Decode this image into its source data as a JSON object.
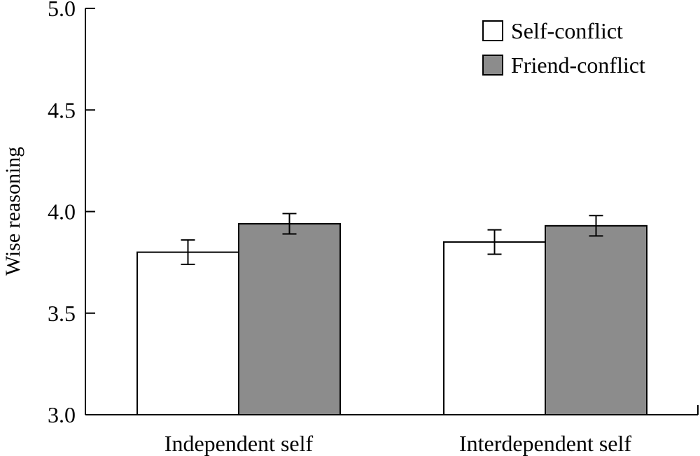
{
  "chart_data": {
    "type": "bar",
    "title": "",
    "xlabel": "",
    "ylabel": "Wise reasoning",
    "ylim": [
      3.0,
      5.0
    ],
    "yticks": [
      "3.0",
      "3.5",
      "4.0",
      "4.5",
      "5.0"
    ],
    "categories": [
      "Independent self",
      "Interdependent self"
    ],
    "series": [
      {
        "name": "Self-conflict",
        "color": "#ffffff",
        "values": [
          3.8,
          3.85
        ],
        "errors": [
          0.06,
          0.06
        ]
      },
      {
        "name": "Friend-conflict",
        "color": "#8c8c8c",
        "values": [
          3.94,
          3.93
        ],
        "errors": [
          0.05,
          0.05
        ]
      }
    ],
    "legend_position": "top-right",
    "grid": false
  }
}
